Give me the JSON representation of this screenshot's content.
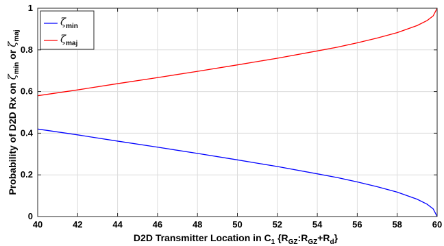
{
  "chart_data": {
    "type": "line",
    "title": "",
    "xlabel": {
      "main": "D2D Transmitter Location in C",
      "sub1": "1",
      "brace_open": " {R",
      "sub2": "GZ",
      "colon": ":R",
      "sub3": "GZ",
      "plus": "+R",
      "sub4": "d",
      "brace_close": "}"
    },
    "ylabel": {
      "prefix": "Probability of D2D Rx on ",
      "sym1": "ζ",
      "sub1": "min",
      "middle": " or ",
      "sym2": "ζ",
      "sub2": "maj"
    },
    "xlim": [
      40,
      60
    ],
    "ylim": [
      0,
      1
    ],
    "xticks": [
      "40",
      "42",
      "44",
      "46",
      "48",
      "50",
      "52",
      "54",
      "56",
      "58",
      "60"
    ],
    "yticks": [
      "0",
      "0.2",
      "0.4",
      "0.6",
      "0.8",
      "1"
    ],
    "grid": true,
    "legend_position": "top-left",
    "series": [
      {
        "name": "ζmin",
        "symbol": "ζ",
        "subscript": "min",
        "color": "#0000ff",
        "x": [
          40,
          42,
          44,
          46,
          48,
          50,
          52,
          54,
          55,
          56,
          57,
          58,
          59,
          59.5,
          59.8,
          60
        ],
        "y": [
          0.42,
          0.392,
          0.362,
          0.333,
          0.303,
          0.272,
          0.24,
          0.205,
          0.187,
          0.166,
          0.143,
          0.117,
          0.083,
          0.059,
          0.037,
          0.0
        ]
      },
      {
        "name": "ζmaj",
        "symbol": "ζ",
        "subscript": "maj",
        "color": "#ff0000",
        "x": [
          40,
          42,
          44,
          46,
          48,
          50,
          52,
          54,
          55,
          56,
          57,
          58,
          59,
          59.5,
          59.8,
          60
        ],
        "y": [
          0.58,
          0.608,
          0.638,
          0.667,
          0.697,
          0.728,
          0.76,
          0.795,
          0.813,
          0.834,
          0.857,
          0.883,
          0.917,
          0.941,
          0.963,
          1.0
        ]
      }
    ]
  }
}
